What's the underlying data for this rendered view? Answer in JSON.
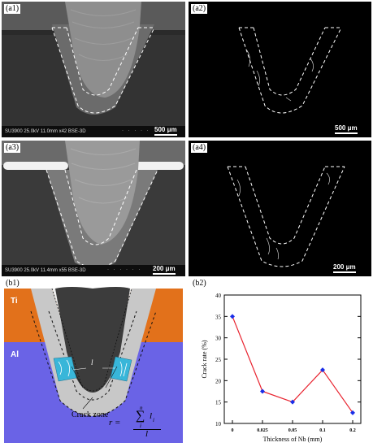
{
  "panels": {
    "a1": {
      "tag": "(a1)",
      "sem_info": "SU3900 25.0kV 11.0mm x42 BSE-3D",
      "scale_label": "500 μm"
    },
    "a2": {
      "tag": "(a2)",
      "scale_label": "500 μm"
    },
    "a3": {
      "tag": "(a3)",
      "sem_info": "SU3900 25.0kV 11.4mm x55 BSE-3D",
      "scale_label": "200 μm"
    },
    "a4": {
      "tag": "(a4)",
      "scale_label": "200 μm"
    },
    "b1": {
      "tag": "(b1)",
      "top_material": "Ti",
      "bottom_material": "Al",
      "crack_label": "l",
      "zone_label": "Crack zone",
      "formula": {
        "lhs": "r =",
        "sum_upper": "n",
        "sum_symbol": "∑",
        "sum_lower": "i",
        "numerator_var": "l",
        "numerator_sub": "i",
        "denominator": "l"
      },
      "colors": {
        "ti": "#e2711b",
        "al": "#6a63e6",
        "zone": "#c8c8c8",
        "crack": "#38b6d9",
        "tool": "#3c3c3c"
      }
    },
    "b2": {
      "tag": "(b2)"
    }
  },
  "chart_data": {
    "type": "line",
    "categories": [
      "0",
      "0.025",
      "0.05",
      "0.1",
      "0.2"
    ],
    "values": [
      35,
      17.5,
      15,
      22.5,
      12.5
    ],
    "xlabel": "Thickness of Nb (mm)",
    "ylabel": "Crack rate (%)",
    "ylim": [
      10,
      40
    ],
    "yticks": [
      "10",
      "15",
      "20",
      "25",
      "30",
      "35",
      "40"
    ],
    "line_color": "#e8222e",
    "marker_color": "#1a2ee8",
    "marker": "diamond",
    "grid": false
  }
}
